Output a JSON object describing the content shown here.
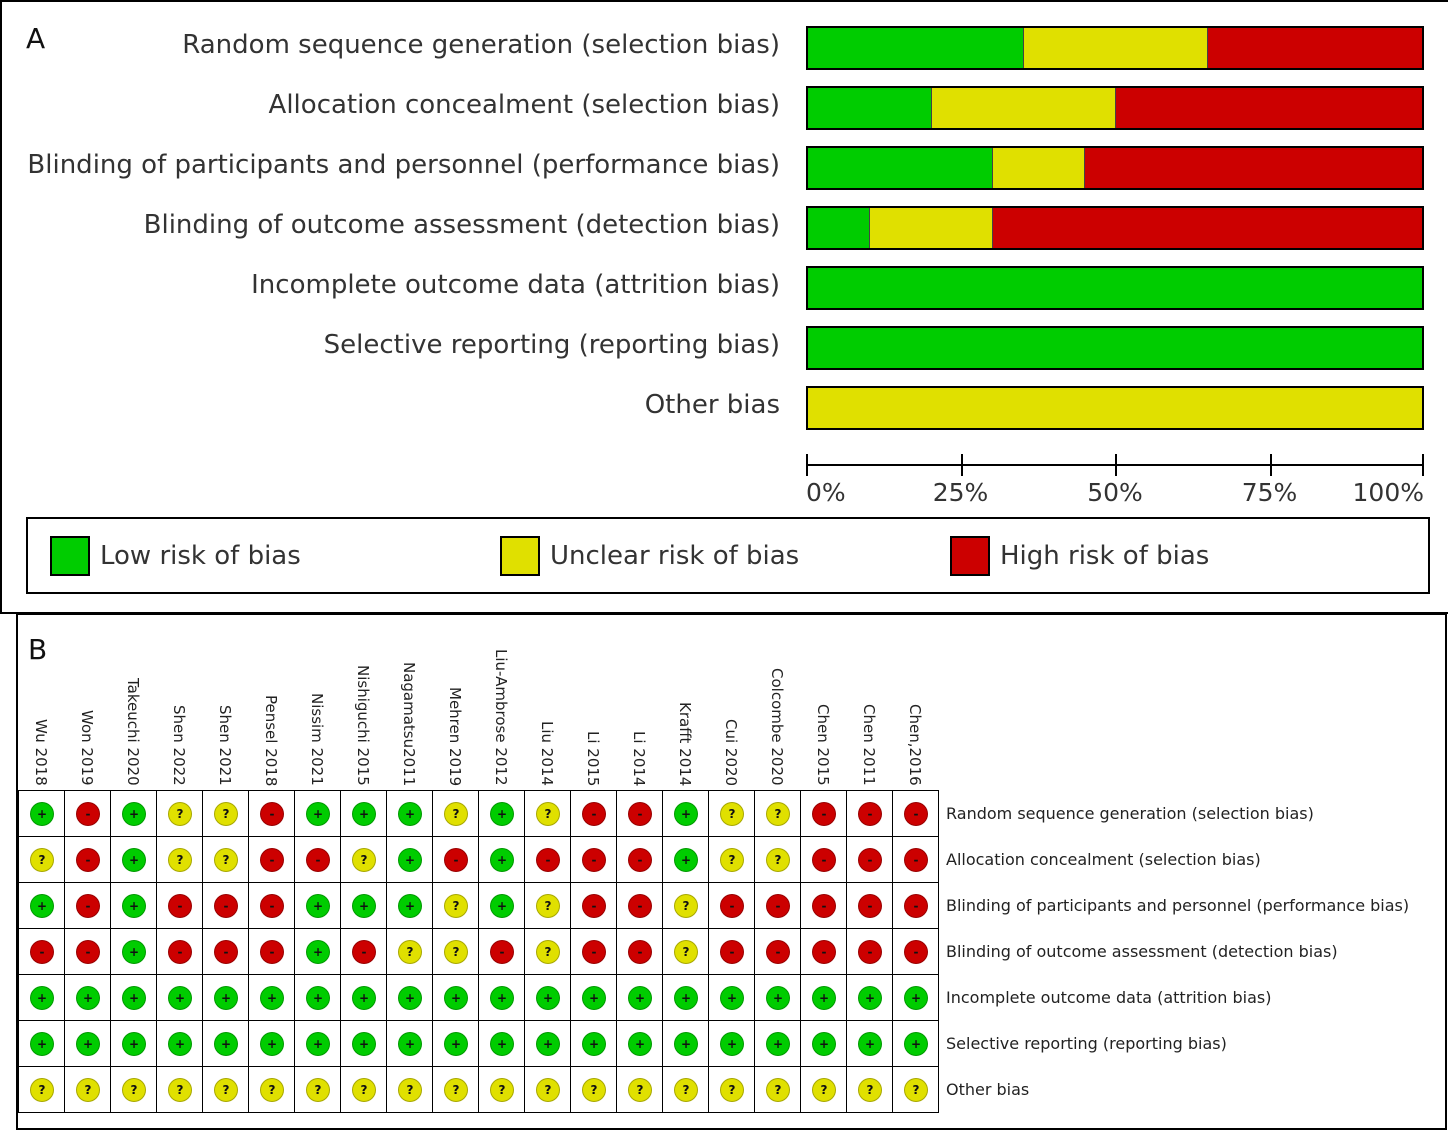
{
  "colors": {
    "low": "#00cc00",
    "unclear": "#e0e000",
    "high": "#cc0000"
  },
  "panel_a": {
    "letter": "A"
  },
  "panel_b": {
    "letter": "B"
  },
  "chart_data": [
    {
      "type": "bar",
      "orientation": "horizontal",
      "stacked": true,
      "categories": [
        "Random sequence generation (selection bias)",
        "Allocation concealment (selection bias)",
        "Blinding of participants and personnel (performance bias)",
        "Blinding of outcome assessment (detection bias)",
        "Incomplete outcome data (attrition bias)",
        "Selective reporting (reporting bias)",
        "Other bias"
      ],
      "series": [
        {
          "name": "Low risk of bias",
          "values": [
            35,
            20,
            30,
            10,
            100,
            100,
            0
          ]
        },
        {
          "name": "Unclear risk of bias",
          "values": [
            30,
            30,
            15,
            20,
            0,
            0,
            100
          ]
        },
        {
          "name": "High risk of bias",
          "values": [
            35,
            50,
            55,
            70,
            0,
            0,
            0
          ]
        }
      ],
      "xlim": [
        0,
        100
      ],
      "xticks": [
        "0%",
        "25%",
        "50%",
        "75%",
        "100%"
      ],
      "legend": "bottom",
      "grid": false
    },
    {
      "type": "table",
      "studies": [
        "Wu 2018",
        "Won 2019",
        "Takeuchi 2020",
        "Shen 2022",
        "Shen 2021",
        "Pensel 2018",
        "Nissim 2021",
        "Nishiguchi 2015",
        "Nagamatsu2011",
        "Mehren 2019",
        "Liu-Ambrose 2012",
        "Liu 2014",
        "Li 2015",
        "Li 2014",
        "Krafft 2014",
        "Cui 2020",
        "Colcombe 2020",
        "Chen 2015",
        "Chen 2011",
        "Chen,2016"
      ],
      "domains": [
        "Random sequence generation (selection bias)",
        "Allocation concealment (selection bias)",
        "Blinding of participants and personnel (performance bias)",
        "Blinding of outcome assessment (detection bias)",
        "Incomplete outcome data (attrition bias)",
        "Selective reporting (reporting bias)",
        "Other bias"
      ],
      "judgements": [
        [
          "+",
          "-",
          "+",
          "?",
          "?",
          "-",
          "+",
          "+",
          "+",
          "?",
          "+",
          "?",
          "-",
          "-",
          "+",
          "?",
          "?",
          "-",
          "-",
          "-"
        ],
        [
          "?",
          "-",
          "+",
          "?",
          "?",
          "-",
          "-",
          "?",
          "+",
          "-",
          "+",
          "-",
          "-",
          "-",
          "+",
          "?",
          "?",
          "-",
          "-",
          "-"
        ],
        [
          "+",
          "-",
          "+",
          "-",
          "-",
          "-",
          "+",
          "+",
          "+",
          "?",
          "+",
          "?",
          "-",
          "-",
          "?",
          "-",
          "-",
          "-",
          "-",
          "-"
        ],
        [
          "-",
          "-",
          "+",
          "-",
          "-",
          "-",
          "+",
          "-",
          "?",
          "?",
          "-",
          "?",
          "-",
          "-",
          "?",
          "-",
          "-",
          "-",
          "-",
          "-"
        ],
        [
          "+",
          "+",
          "+",
          "+",
          "+",
          "+",
          "+",
          "+",
          "+",
          "+",
          "+",
          "+",
          "+",
          "+",
          "+",
          "+",
          "+",
          "+",
          "+",
          "+"
        ],
        [
          "+",
          "+",
          "+",
          "+",
          "+",
          "+",
          "+",
          "+",
          "+",
          "+",
          "+",
          "+",
          "+",
          "+",
          "+",
          "+",
          "+",
          "+",
          "+",
          "+"
        ],
        [
          "?",
          "?",
          "?",
          "?",
          "?",
          "?",
          "?",
          "?",
          "?",
          "?",
          "?",
          "?",
          "?",
          "?",
          "?",
          "?",
          "?",
          "?",
          "?",
          "?"
        ]
      ]
    }
  ]
}
